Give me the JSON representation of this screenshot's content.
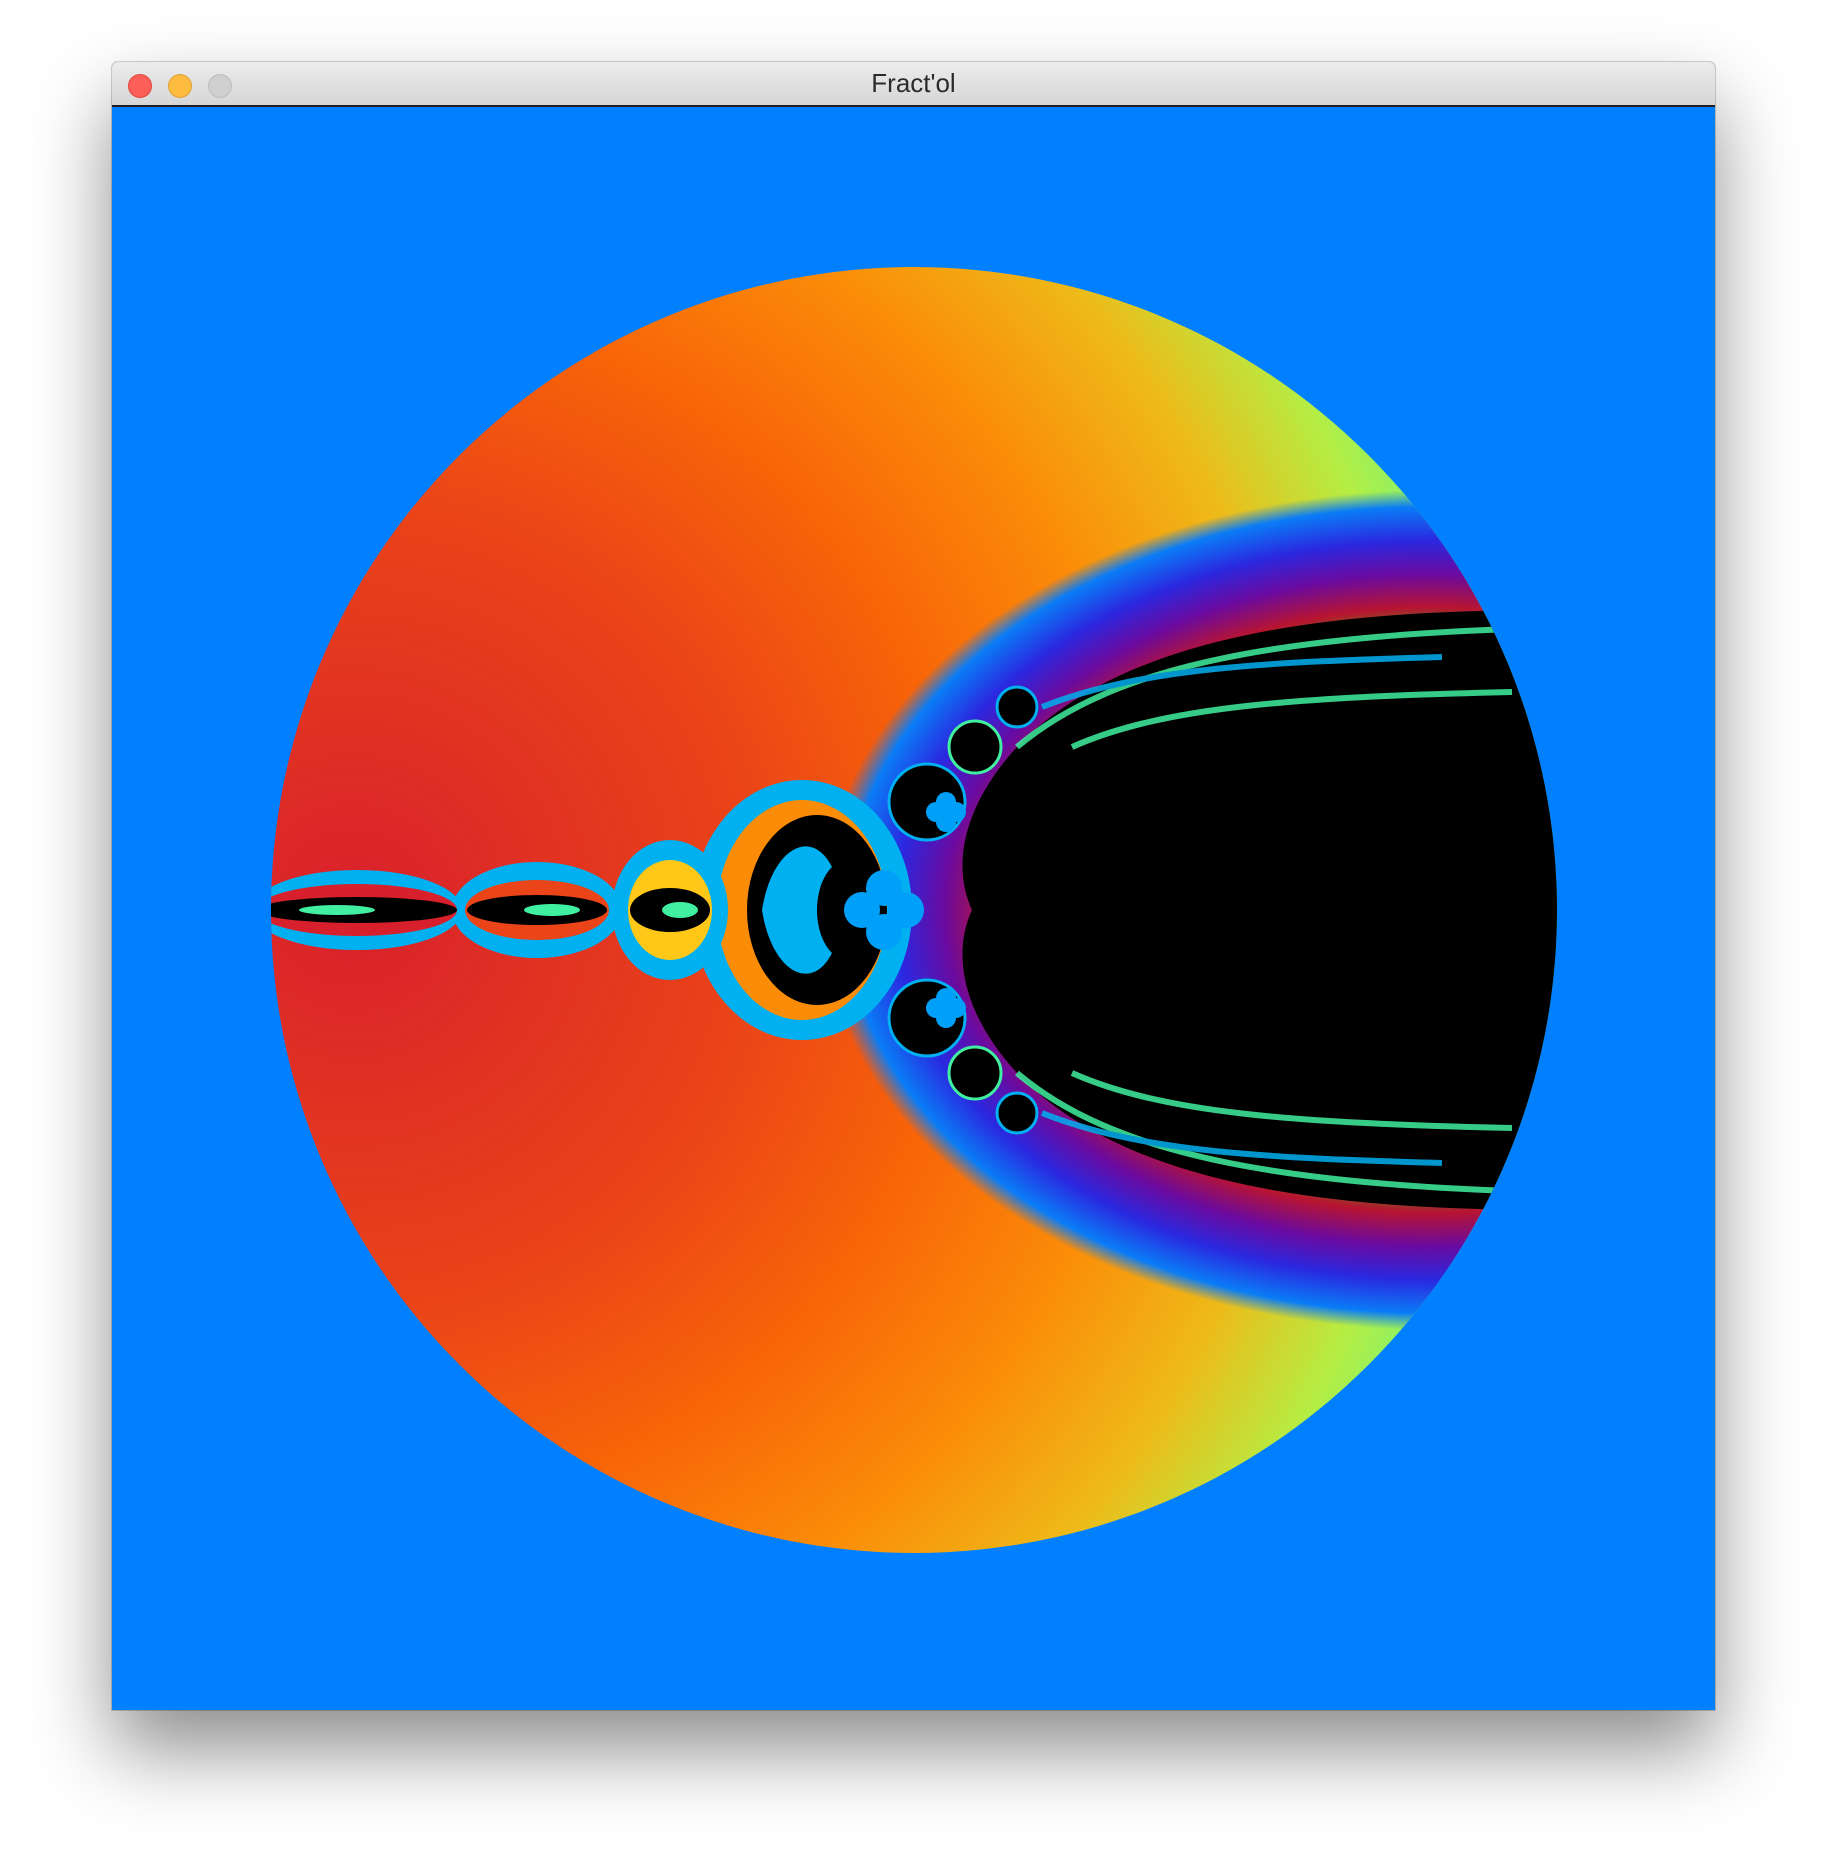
{
  "window": {
    "title": "Fract'ol"
  },
  "colors": {
    "background": "#0080ff",
    "set_interior": "#000000",
    "accent_cyan": "#00b0f0",
    "accent_green": "#40f0a0"
  },
  "icons": {
    "close": "traffic-light-close",
    "minimize": "traffic-light-minimize",
    "zoom": "traffic-light-zoom"
  }
}
